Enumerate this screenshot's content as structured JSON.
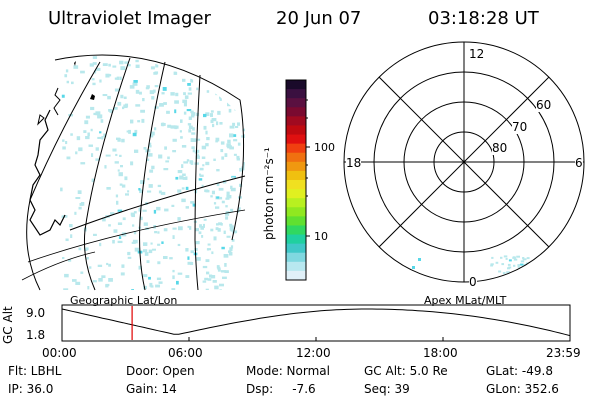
{
  "header": {
    "instrument": "Ultraviolet Imager",
    "date": "20 Jun 07",
    "time": "03:18:28 UT"
  },
  "colorbar": {
    "unit_label": "photon cm⁻²s⁻¹",
    "ticks": [
      "100",
      "10"
    ],
    "colors_top_to_bottom": [
      "#1a0a2a",
      "#3a1040",
      "#5a1040",
      "#7a0a30",
      "#a00a20",
      "#c00a10",
      "#e01010",
      "#f04010",
      "#f07010",
      "#f09810",
      "#f0c010",
      "#f0e020",
      "#e0f020",
      "#b8f020",
      "#90e820",
      "#60e030",
      "#30d860",
      "#20d0a0",
      "#40c8c8",
      "#80d8e0",
      "#b8e8f0",
      "#e0f0f8"
    ]
  },
  "left_panel": {
    "label": "Geographic Lat/Lon"
  },
  "polar_panel": {
    "label": "Apex MLat/MLT",
    "mlt_labels": {
      "top": "12",
      "left": "18",
      "right": "6",
      "bottom": "0"
    },
    "lat_labels": [
      "60",
      "70",
      "80"
    ]
  },
  "altitude_plot": {
    "y_label": "GC Alt",
    "y_ticks": [
      "9.0",
      "1.8"
    ],
    "x_ticks": [
      "00:00",
      "06:00",
      "12:00",
      "18:00",
      "23:59"
    ],
    "current_time_fraction": 0.138
  },
  "info": {
    "flt": "Flt: LBHL",
    "door": "Door: Open",
    "mode": "Mode: Normal",
    "gc_alt": "GC Alt: 5.0 Re",
    "glat": "GLat: -49.8",
    "ip": "IP: 36.0",
    "gain": "Gain: 14",
    "dsp": "Dsp:     -7.6",
    "seq": "Seq: 39",
    "glon": "GLon: 352.6"
  },
  "colors": {
    "speckle": "#b8e8ec",
    "speckle_bright": "#58d8e8",
    "time_marker": "#e00000"
  }
}
